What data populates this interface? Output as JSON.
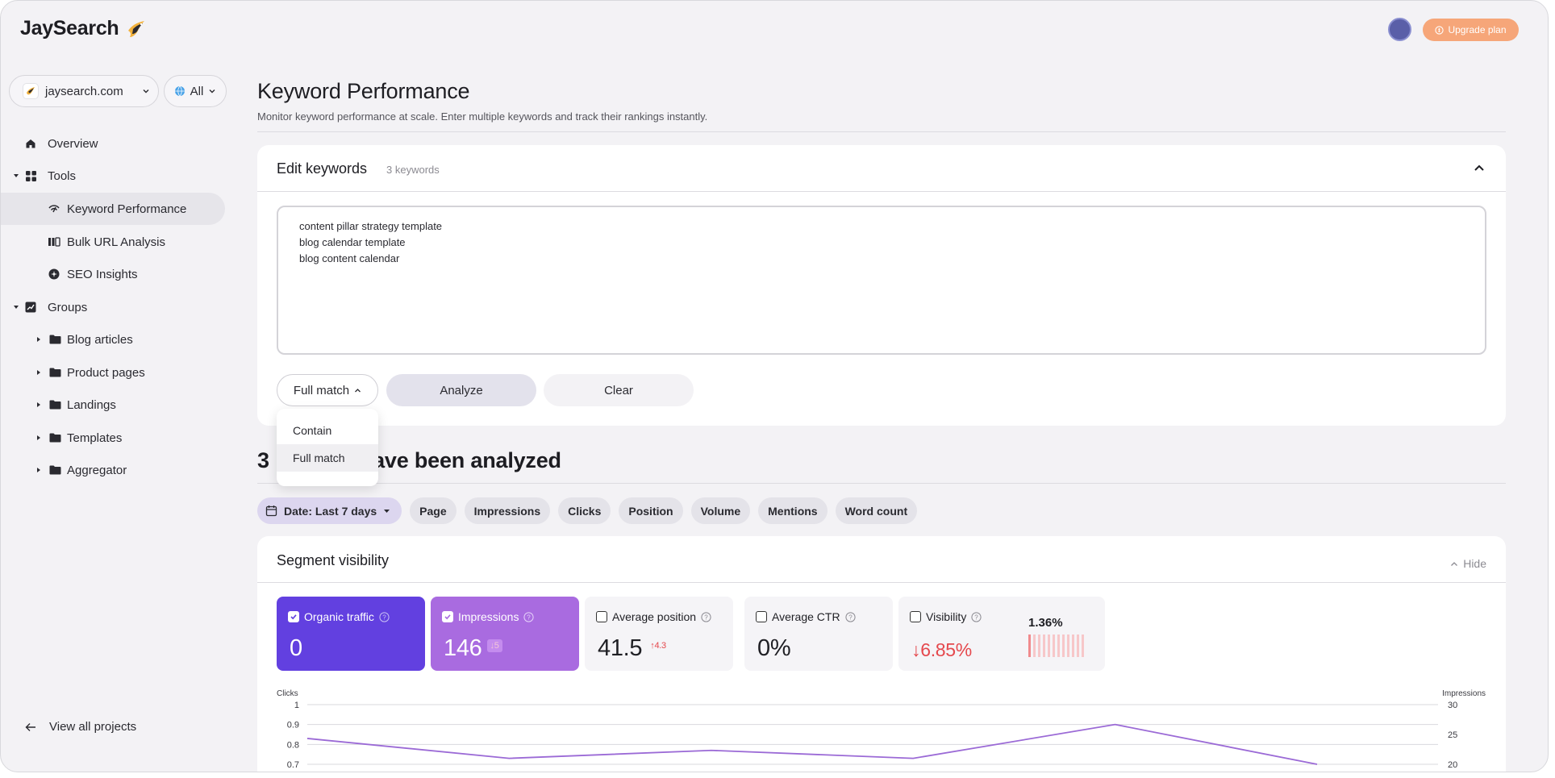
{
  "brand": {
    "name": "JaySearch"
  },
  "project": {
    "domain": "jaysearch.com",
    "region": "All"
  },
  "sidebar": {
    "items": [
      {
        "label": "Overview"
      },
      {
        "label": "Tools"
      },
      {
        "label": "Keyword Performance"
      },
      {
        "label": "Bulk URL Analysis"
      },
      {
        "label": "SEO Insights"
      },
      {
        "label": "Groups"
      },
      {
        "label": "Blog articles"
      },
      {
        "label": "Product pages"
      },
      {
        "label": "Landings"
      },
      {
        "label": "Templates"
      },
      {
        "label": "Aggregator"
      }
    ],
    "view_all": "View all projects"
  },
  "header": {
    "upgrade_label": "Upgrade plan"
  },
  "main": {
    "title": "Keyword Performance",
    "subtitle": "Monitor keyword performance at scale. Enter multiple keywords and track their rankings instantly.",
    "edit_card": {
      "title": "Edit keywords",
      "count": "3 keywords",
      "keywords": [
        "content pillar strategy template",
        "blog calendar template",
        "blog content calendar"
      ],
      "match_label": "Full match",
      "analyze_label": "Analyze",
      "clear_label": "Clear",
      "match_options": [
        "Contain",
        "Full match"
      ],
      "selected_option": "Full match"
    },
    "results": {
      "count": "3",
      "title_suffix": "have been analyzed"
    },
    "filters": [
      "Date: Last 7 days",
      "Page",
      "Impressions",
      "Clicks",
      "Position",
      "Volume",
      "Mentions",
      "Word count"
    ],
    "segment": {
      "title": "Segment visibility",
      "hide_label": "Hide",
      "metrics": [
        {
          "label": "Organic traffic",
          "value": "0",
          "checked": true
        },
        {
          "label": "Impressions",
          "value": "146",
          "delta": "5",
          "delta_dir": "down",
          "checked": true
        },
        {
          "label": "Average position",
          "value": "41.5",
          "delta": "4.3",
          "delta_dir": "up",
          "checked": false
        },
        {
          "label": "Average CTR",
          "value": "0%",
          "checked": false
        },
        {
          "label": "Visibility",
          "value": "6.85%",
          "delta_dir": "down",
          "secondary": "1.36%",
          "checked": false
        }
      ]
    }
  },
  "chart_data": {
    "type": "line",
    "left_axis_label": "Clicks",
    "right_axis_label": "Impressions",
    "left_ticks": [
      "1",
      "0.9",
      "0.8",
      "0.7"
    ],
    "right_ticks": [
      "30",
      "25",
      "20"
    ],
    "ylim_left": [
      0.7,
      1
    ],
    "ylim_right": [
      20,
      30
    ],
    "series": [
      {
        "values": [
          0.83,
          0.73,
          0.77,
          0.73,
          0.9,
          0.7
        ],
        "color": "#9b6ad6"
      }
    ]
  },
  "colors": {
    "accent_purple": "#6240e0",
    "accent_violet": "#a96be0",
    "upgrade": "#f6a679",
    "negative": "#e5484d",
    "line": "#9b6ad6"
  }
}
